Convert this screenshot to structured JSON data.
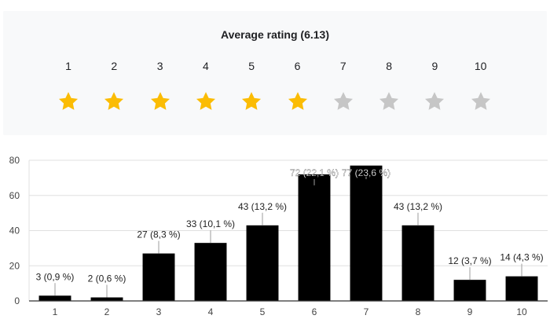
{
  "rating": {
    "title": "Average rating (6.13)",
    "scale": [
      "1",
      "2",
      "3",
      "4",
      "5",
      "6",
      "7",
      "8",
      "9",
      "10"
    ],
    "filled_stars": 6,
    "star_icon": "star-icon",
    "colors": {
      "filled": "#fbbc04",
      "empty": "#c6c6c6",
      "panel": "#f8f9fa"
    }
  },
  "chart_data": {
    "type": "bar",
    "categories": [
      "1",
      "2",
      "3",
      "4",
      "5",
      "6",
      "7",
      "8",
      "9",
      "10"
    ],
    "values": [
      3,
      2,
      27,
      33,
      43,
      72,
      77,
      43,
      12,
      14
    ],
    "data_labels": [
      "3 (0,9 %)",
      "2 (0,6 %)",
      "27 (8,3 %)",
      "33 (10,1 %)",
      "43 (13,2 %)",
      "72 (22,1 %)",
      "77 (23,6 %)",
      "43 (13,2 %)",
      "12 (3,7 %)",
      "14 (4,3 %)"
    ],
    "y_ticks": [
      "0",
      "20",
      "40",
      "60",
      "80"
    ],
    "ylim": [
      0,
      80
    ],
    "grid": true,
    "bar_color": "#000000",
    "grid_color": "#e0e0e0",
    "axis_color": "#333333"
  }
}
